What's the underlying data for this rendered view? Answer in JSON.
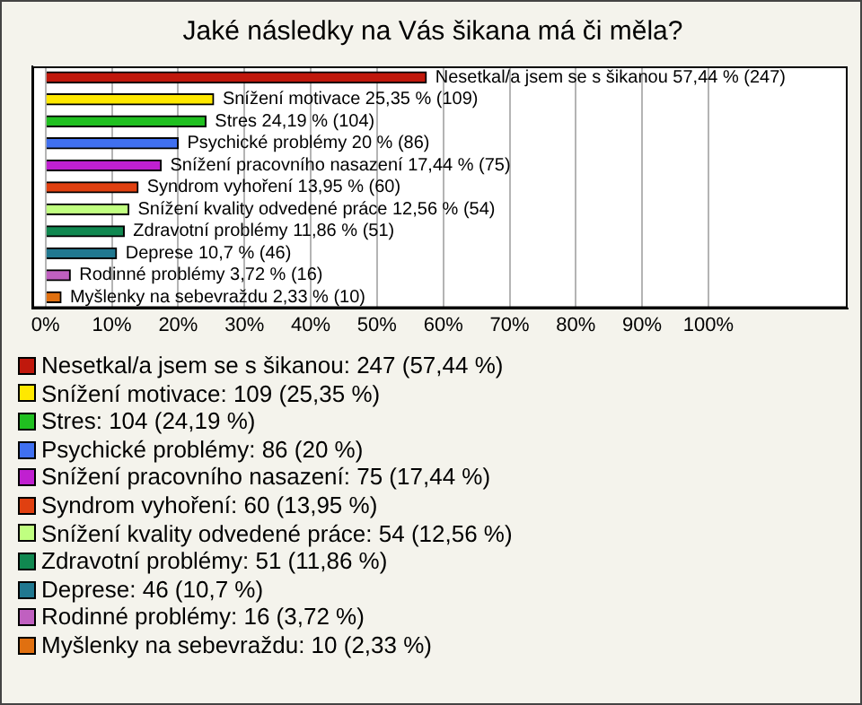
{
  "chart_data": {
    "type": "bar",
    "orientation": "horizontal",
    "title": "Jaké následky na Vás šikana má či měla?",
    "categories": [
      null,
      null,
      null,
      null,
      null,
      null,
      null,
      null,
      null,
      null,
      null
    ],
    "values": [
      57.44,
      25.35,
      24.19,
      20,
      17.44,
      13.95,
      12.56,
      11.86,
      10.7,
      3.72,
      2.33
    ],
    "colors": [
      "#c0180c",
      "#ffe800",
      "#20c020",
      "#4070f0",
      "#c020d0",
      "#e04010",
      "#c0ff80",
      "#108850",
      "#207890",
      "#c060c0",
      "#e07010"
    ],
    "value_labels": [
      "Nesetkal/a jsem se s šikanou 57,44 % (247)",
      "Snížení motivace 25,35 % (109)",
      "Stres 24,19 % (104)",
      "Psychické problémy 20 % (86)",
      "Snížení pracovního nasazení 17,44 % (75)",
      "Syndrom vyhoření 13,95 % (60)",
      "Snížení kvality odvedené práce 12,56 % (54)",
      "Zdravotní problémy 11,86 % (51)",
      "Deprese 10,7 % (46)",
      "Rodinné problémy 3,72 % (16)",
      "Myšlenky na sebevraždu 2,33 % (10)"
    ],
    "annotations": [
      "Nesetkal/a jsem se s šikanou: 247 (57,44 %)",
      "Snížení motivace: 109 (25,35 %)",
      "Stres: 104 (24,19 %)",
      "Psychické problémy: 86 (20 %)",
      "Snížení pracovního nasazení: 75 (17,44 %)",
      "Syndrom vyhoření: 60 (13,95 %)",
      "Snížení kvality odvedené práce: 54 (12,56 %)",
      "Zdravotní problémy: 51 (11,86 %)",
      "Deprese: 46 (10,7 %)",
      "Rodinné problémy: 16 (3,72 %)",
      "Myšlenky na sebevraždu: 10 (2,33 %)"
    ],
    "xlim": [
      -2,
      121
    ],
    "xticks": [
      {
        "value": 0,
        "label": "0%"
      },
      {
        "value": 10,
        "label": "10%"
      },
      {
        "value": 20,
        "label": "20%"
      },
      {
        "value": 30,
        "label": "30%"
      },
      {
        "value": 40,
        "label": "40%"
      },
      {
        "value": 50,
        "label": "50%"
      },
      {
        "value": 60,
        "label": "60%"
      },
      {
        "value": 70,
        "label": "70%"
      },
      {
        "value": 80,
        "label": "80%"
      },
      {
        "value": 90,
        "label": "90%"
      },
      {
        "value": 100,
        "label": "100%"
      }
    ],
    "grid": "x",
    "tick_labels": "x"
  }
}
